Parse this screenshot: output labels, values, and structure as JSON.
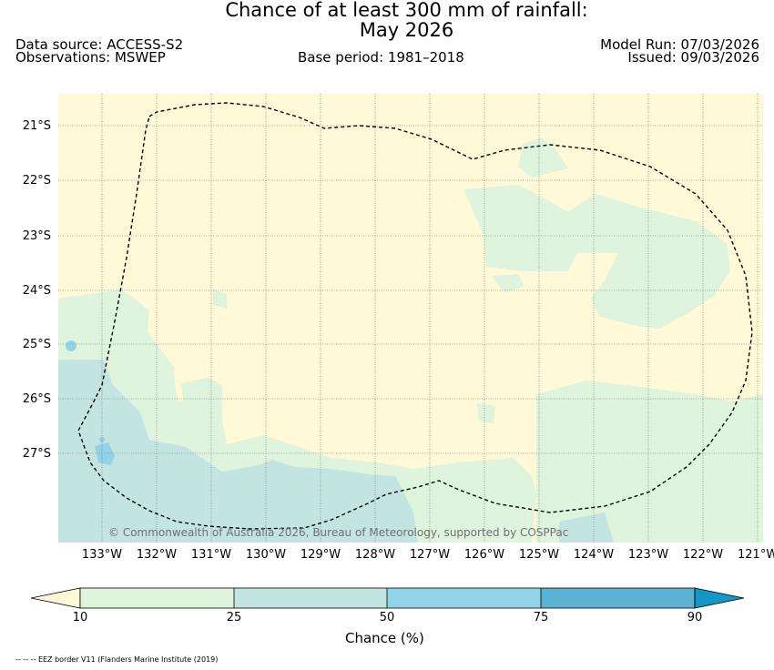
{
  "title_line1": "Chance of at least 300 mm of rainfall:",
  "title_line2": "May 2026",
  "header": {
    "data_source": "Data source: ACCESS-S2",
    "observations": "Observations: MSWEP",
    "base_period": "Base period: 1981–2018",
    "model_run": "Model Run: 07/03/2026",
    "issued": "Issued: 09/03/2026"
  },
  "map": {
    "lat_labels": [
      "21°S",
      "22°S",
      "23°S",
      "24°S",
      "25°S",
      "26°S",
      "27°S"
    ],
    "lon_labels": [
      "133°W",
      "132°W",
      "131°W",
      "130°W",
      "129°W",
      "128°W",
      "127°W",
      "126°W",
      "125°W",
      "124°W",
      "123°W",
      "122°W",
      "121°W"
    ],
    "copyright": "© Commonwealth of Australia 2026, Bureau of Meteorology, supported by COSPPac",
    "colors": {
      "below10": "#fff9d8",
      "c10_25": "#def4dc",
      "c25_50": "#c3e5e1",
      "c50_75": "#91d4e7",
      "c75_90": "#5bb2d3",
      "above90": "#1497c4"
    }
  },
  "colorbar": {
    "ticks": [
      "10",
      "25",
      "50",
      "75",
      "90"
    ],
    "label": "Chance (%)"
  },
  "footnote": "-- -- -- EEZ border V11 (Flanders Marine Institute (2019)"
}
